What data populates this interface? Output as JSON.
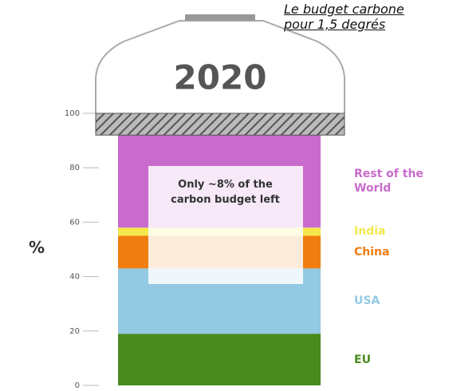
{
  "title": "Le budget carbone pour 1,5 degrés",
  "chart_data": {
    "type": "stacked-bucket",
    "year": "2020",
    "y_label": "%",
    "annotation": "Only ~8% of the carbon budget left",
    "budget_left": 8,
    "ylim": [
      0,
      100
    ],
    "yticks": [
      0,
      20,
      40,
      60,
      80,
      100
    ],
    "series": [
      {
        "name": "EU",
        "color": "#4b8a1f",
        "values": [
          19
        ]
      },
      {
        "name": "USA",
        "color": "#93c9e3",
        "values": [
          24
        ]
      },
      {
        "name": "China",
        "color": "#f07d10",
        "values": [
          12
        ]
      },
      {
        "name": "India",
        "color": "#f3e84a",
        "values": [
          3
        ]
      },
      {
        "name": "Rest of the World",
        "color": "#c86bcc",
        "values": [
          34
        ]
      }
    ]
  }
}
